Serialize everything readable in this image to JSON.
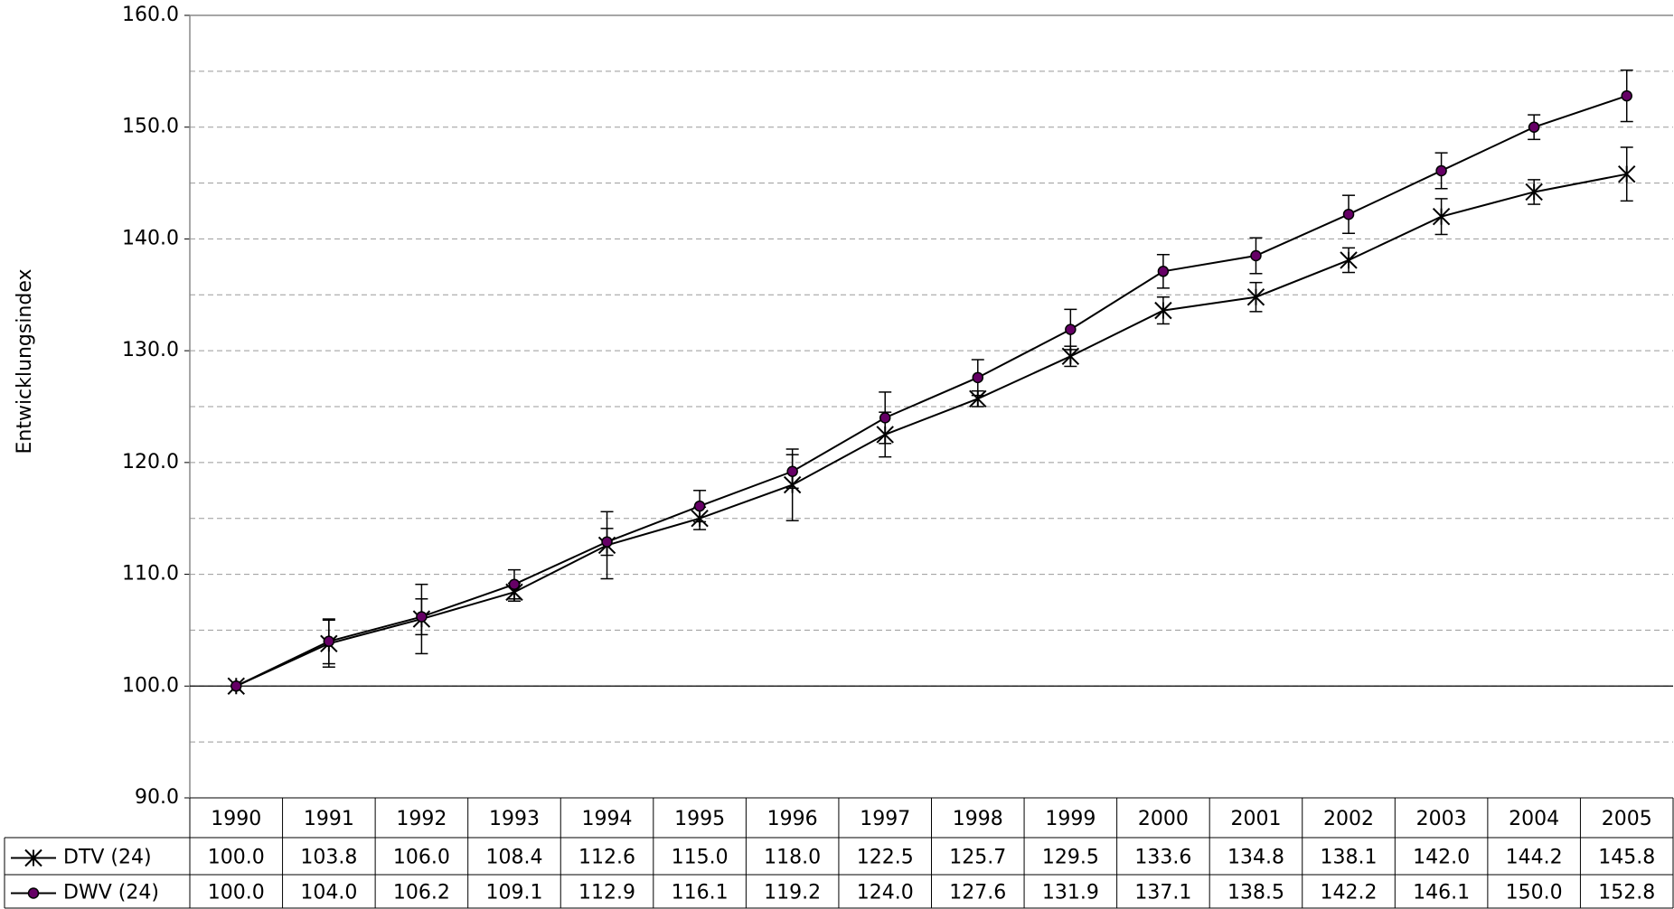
{
  "chart_data": {
    "type": "line",
    "y_label": "Entwicklungsindex",
    "categories": [
      "1990",
      "1991",
      "1992",
      "1993",
      "1994",
      "1995",
      "1996",
      "1997",
      "1998",
      "1999",
      "2000",
      "2001",
      "2002",
      "2003",
      "2004",
      "2005"
    ],
    "series": [
      {
        "name": "DTV (24)",
        "color": "#000000",
        "marker": "star",
        "values": [
          100.0,
          103.8,
          106.0,
          108.4,
          112.6,
          115.0,
          118.0,
          122.5,
          125.7,
          129.5,
          133.6,
          134.8,
          138.1,
          142.0,
          144.2,
          145.8
        ],
        "value_labels": [
          "100.0",
          "103.8",
          "106.0",
          "108.4",
          "112.6",
          "115.0",
          "118.0",
          "122.5",
          "125.7",
          "129.5",
          "133.6",
          "134.8",
          "138.1",
          "142.0",
          "144.2",
          "145.8"
        ],
        "errors": [
          0,
          2.1,
          3.1,
          0.8,
          3.0,
          1.0,
          3.2,
          2.0,
          0.7,
          0.9,
          1.2,
          1.3,
          1.1,
          1.6,
          1.1,
          2.4
        ]
      },
      {
        "name": "DWV (24)",
        "color": "#660066",
        "marker": "circle",
        "values": [
          100.0,
          104.0,
          106.2,
          109.1,
          112.9,
          116.1,
          119.2,
          124.0,
          127.6,
          131.9,
          137.1,
          138.5,
          142.2,
          146.1,
          150.0,
          152.8
        ],
        "value_labels": [
          "100.0",
          "104.0",
          "106.2",
          "109.1",
          "112.9",
          "116.1",
          "119.2",
          "124.0",
          "127.6",
          "131.9",
          "137.1",
          "138.5",
          "142.2",
          "146.1",
          "150.0",
          "152.8"
        ],
        "errors": [
          0,
          2.0,
          1.6,
          1.3,
          1.2,
          1.4,
          1.5,
          2.3,
          1.6,
          1.8,
          1.5,
          1.6,
          1.7,
          1.6,
          1.1,
          2.3
        ]
      }
    ],
    "ylim": [
      90,
      160
    ],
    "yticks": [
      {
        "value": 90,
        "label": "90.0"
      },
      {
        "value": 100,
        "label": "100.0"
      },
      {
        "value": 110,
        "label": "110.0"
      },
      {
        "value": 120,
        "label": "120.0"
      },
      {
        "value": 130,
        "label": "130.0"
      },
      {
        "value": 140,
        "label": "140.0"
      },
      {
        "value": 150,
        "label": "150.0"
      },
      {
        "value": 160,
        "label": "160.0"
      }
    ],
    "minor_yticks": [
      95,
      105,
      115,
      125,
      135,
      145,
      155
    ],
    "x_axis_crossing": 100,
    "grid": true,
    "legend": "table"
  }
}
